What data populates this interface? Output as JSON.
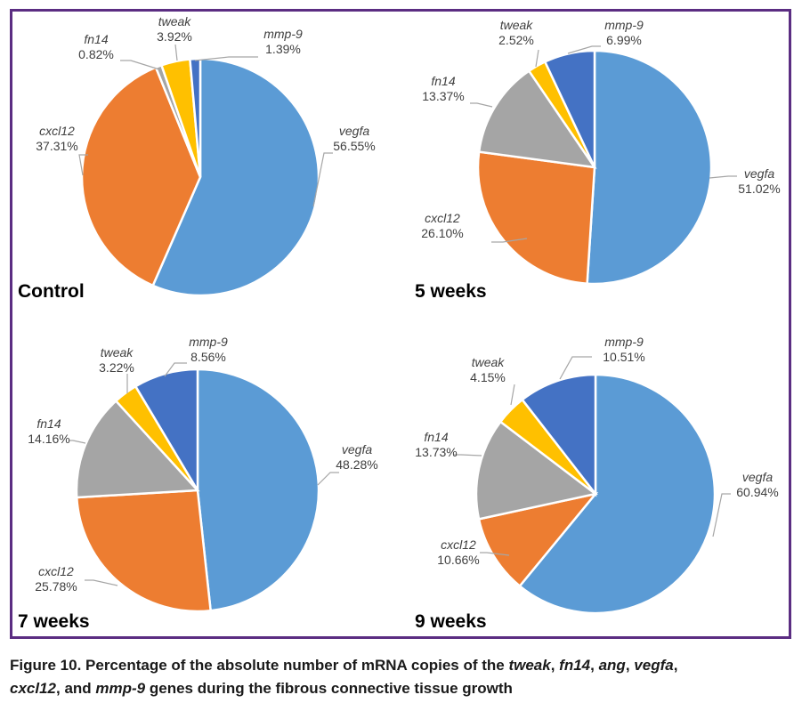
{
  "caption": {
    "prefix": "Figure 10. Percentage of the absolute number of mRNA copies of the ",
    "gene_1": "tweak",
    "sep_1": ", ",
    "gene_2": "fn14",
    "sep_2": ", ",
    "gene_3": "ang",
    "sep_3": ", ",
    "gene_4": "vegfa",
    "sep_4": ", ",
    "gene_5": "cxcl12",
    "sep_5": ", and ",
    "gene_6": "mmp-9",
    "suffix": " genes during the fibrous connective tissue growth"
  },
  "colors": {
    "vegfa": "#5b9bd5",
    "cxcl12": "#ed7d31",
    "fn14": "#a5a5a5",
    "tweak": "#ffc000",
    "mmp-9": "#4472c4",
    "frame": "#5b2d82"
  },
  "chart_data": [
    {
      "type": "pie",
      "title": "Control",
      "slices": [
        {
          "label": "vegfa",
          "value": 56.55,
          "value_label": "56.55%"
        },
        {
          "label": "cxcl12",
          "value": 37.31,
          "value_label": "37.31%"
        },
        {
          "label": "fn14",
          "value": 0.82,
          "value_label": "0.82%"
        },
        {
          "label": "tweak",
          "value": 3.92,
          "value_label": "3.92%"
        },
        {
          "label": "mmp-9",
          "value": 1.39,
          "value_label": "1.39%"
        }
      ]
    },
    {
      "type": "pie",
      "title": "5 weeks",
      "slices": [
        {
          "label": "vegfa",
          "value": 51.02,
          "value_label": "51.02%"
        },
        {
          "label": "cxcl12",
          "value": 26.1,
          "value_label": "26.10%"
        },
        {
          "label": "fn14",
          "value": 13.37,
          "value_label": "13.37%"
        },
        {
          "label": "tweak",
          "value": 2.52,
          "value_label": "2.52%"
        },
        {
          "label": "mmp-9",
          "value": 6.99,
          "value_label": "6.99%"
        }
      ]
    },
    {
      "type": "pie",
      "title": "7 weeks",
      "slices": [
        {
          "label": "vegfa",
          "value": 48.28,
          "value_label": "48.28%"
        },
        {
          "label": "cxcl12",
          "value": 25.78,
          "value_label": "25.78%"
        },
        {
          "label": "fn14",
          "value": 14.16,
          "value_label": "14.16%"
        },
        {
          "label": "tweak",
          "value": 3.22,
          "value_label": "3.22%"
        },
        {
          "label": "mmp-9",
          "value": 8.56,
          "value_label": "8.56%"
        }
      ]
    },
    {
      "type": "pie",
      "title": "9 weeks",
      "slices": [
        {
          "label": "vegfa",
          "value": 60.94,
          "value_label": "60.94%"
        },
        {
          "label": "cxcl12",
          "value": 10.66,
          "value_label": "10.66%"
        },
        {
          "label": "fn14",
          "value": 13.73,
          "value_label": "13.73%"
        },
        {
          "label": "tweak",
          "value": 4.15,
          "value_label": "4.15%"
        },
        {
          "label": "mmp-9",
          "value": 10.51,
          "value_label": "10.51%"
        }
      ]
    }
  ]
}
